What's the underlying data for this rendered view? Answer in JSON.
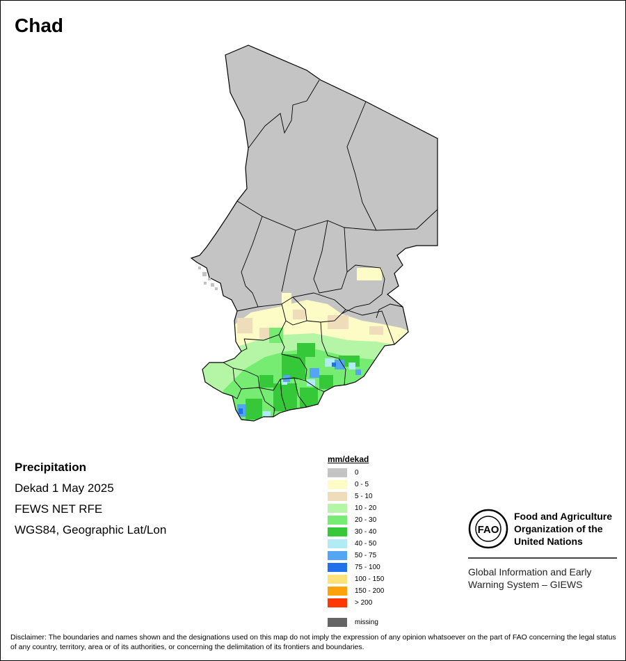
{
  "map": {
    "title": "Chad",
    "region_fill": "#c4c4c4",
    "border_color": "#000000"
  },
  "meta": {
    "heading": "Precipitation",
    "period": "Dekad 1 May 2025",
    "source": "FEWS NET RFE",
    "projection": "WGS84, Geographic Lat/Lon"
  },
  "legend": {
    "title": "mm/dekad",
    "classes": [
      {
        "label": "0",
        "color": "#c4c4c4"
      },
      {
        "label": "0 - 5",
        "color": "#fdfbc6"
      },
      {
        "label": "5 - 10",
        "color": "#efdcbb"
      },
      {
        "label": "10 - 20",
        "color": "#b4f6a6"
      },
      {
        "label": "20 - 30",
        "color": "#77ec72"
      },
      {
        "label": "30 - 40",
        "color": "#35c93a"
      },
      {
        "label": "40 - 50",
        "color": "#b1ecf6"
      },
      {
        "label": "50 - 75",
        "color": "#54a6f4"
      },
      {
        "label": "75 - 100",
        "color": "#2070ec"
      },
      {
        "label": "100 - 150",
        "color": "#fde27a"
      },
      {
        "label": "150 - 200",
        "color": "#fca30c"
      },
      {
        "label": "> 200",
        "color": "#fc3805"
      }
    ],
    "missing": {
      "label": "missing",
      "color": "#656565"
    }
  },
  "fao": {
    "logo_text": "FAO",
    "org_line1": "Food and Agriculture",
    "org_line2": "Organization of the",
    "org_line3": "United Nations",
    "giews_line1": "Global Information and Early",
    "giews_line2": "Warning System – GIEWS"
  },
  "disclaimer": "Disclaimer: The boundaries and names shown and the designations used on this map do not imply the expression of any opinion whatsoever on the part of FAO concerning the legal status of any country, territory, area or of its authorities, or concerning the delimitation of its frontiers and boundaries."
}
